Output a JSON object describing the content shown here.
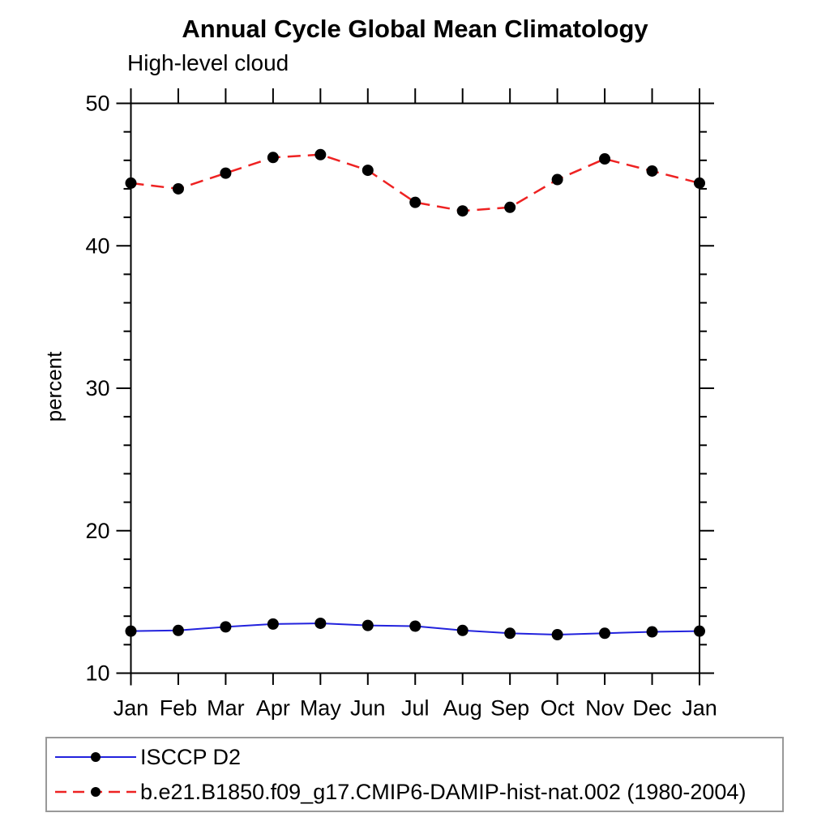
{
  "chart_data": {
    "type": "line",
    "title": "Annual Cycle Global Mean Climatology",
    "subtitle": "High-level cloud",
    "ylabel": "percent",
    "xlabel": "",
    "categories": [
      "Jan",
      "Feb",
      "Mar",
      "Apr",
      "May",
      "Jun",
      "Jul",
      "Aug",
      "Sep",
      "Oct",
      "Nov",
      "Dec",
      "Jan"
    ],
    "ylim": [
      10,
      50
    ],
    "y_major_ticks": [
      10,
      20,
      30,
      40,
      50
    ],
    "y_minor_step": 2,
    "grid": "off",
    "legend_position": "bottom-left",
    "axis_color": "#000000",
    "marker_color": "#000000",
    "series": [
      {
        "name": "ISCCP D2",
        "color": "#2222dd",
        "line_style": "solid",
        "marker": "circle",
        "values": [
          12.95,
          13.0,
          13.25,
          13.45,
          13.5,
          13.35,
          13.3,
          13.0,
          12.8,
          12.7,
          12.8,
          12.9,
          12.95
        ]
      },
      {
        "name": "b.e21.B1850.f09_g17.CMIP6-DAMIP-hist-nat.002 (1980-2004)",
        "color": "#ee2222",
        "line_style": "dashed",
        "marker": "circle",
        "values": [
          44.4,
          44.0,
          45.1,
          46.2,
          46.4,
          45.3,
          43.05,
          42.45,
          42.7,
          44.65,
          46.1,
          45.25,
          44.4
        ]
      }
    ]
  }
}
